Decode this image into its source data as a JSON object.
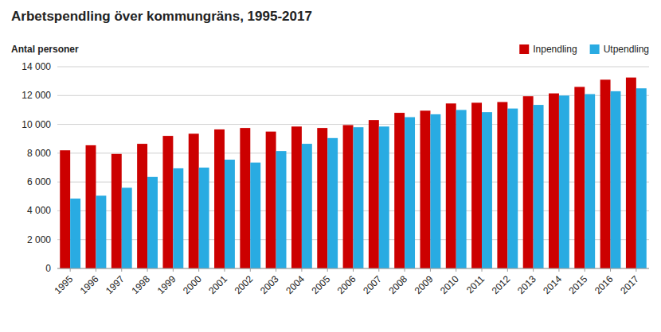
{
  "chart_data": {
    "type": "bar",
    "title": "Arbetspendling över kommungräns, 1995-2017",
    "ylabel": "Antal personer",
    "categories": [
      1995,
      1996,
      1997,
      1998,
      1999,
      2000,
      2001,
      2002,
      2003,
      2004,
      2005,
      2006,
      2007,
      2008,
      2009,
      2010,
      2011,
      2012,
      2013,
      2014,
      2015,
      2016,
      2017
    ],
    "series": [
      {
        "name": "Inpendling",
        "color": "#CC0000",
        "values": [
          8200,
          8550,
          7950,
          8650,
          9200,
          9350,
          9650,
          9750,
          9500,
          9850,
          9750,
          9950,
          10300,
          10800,
          10950,
          11450,
          11500,
          11550,
          11950,
          12150,
          12600,
          13100,
          13250
        ]
      },
      {
        "name": "Utpendling",
        "color": "#29ABE2",
        "values": [
          4850,
          5050,
          5600,
          6350,
          6950,
          7000,
          7550,
          7350,
          8150,
          8650,
          9050,
          9800,
          9850,
          10500,
          10700,
          11000,
          10850,
          11100,
          11350,
          12000,
          12100,
          12300,
          12500
        ]
      }
    ],
    "ylim": [
      0,
      14000
    ],
    "yticks": [
      0,
      {
        "value": 2000,
        "label": "2 000"
      },
      {
        "value": 4000,
        "label": "4 000"
      },
      {
        "value": 6000,
        "label": "6 000"
      },
      {
        "value": 8000,
        "label": "8 000"
      },
      {
        "value": 10000,
        "label": "10 000"
      },
      {
        "value": 12000,
        "label": "12 000"
      },
      {
        "value": 14000,
        "label": "14 000"
      }
    ],
    "grid": true,
    "legend": "upper right"
  }
}
